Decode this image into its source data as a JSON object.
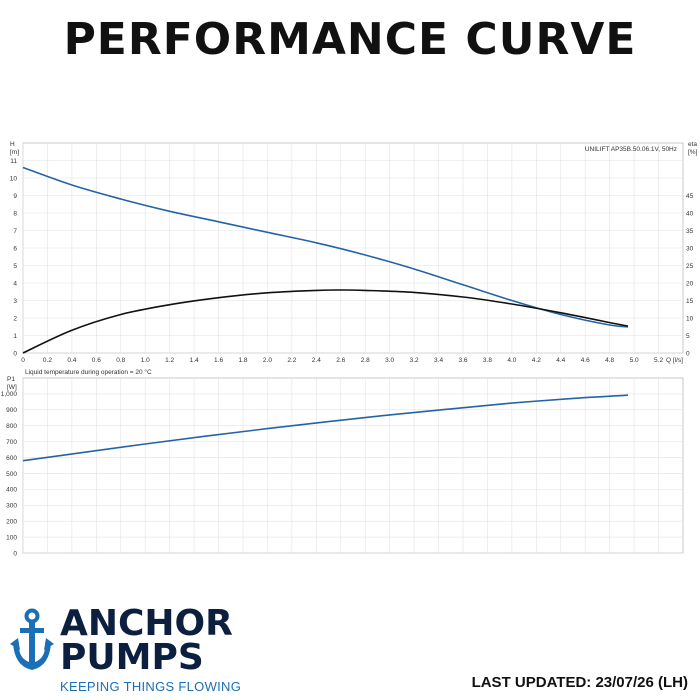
{
  "header": {
    "title": "PERFORMANCE CURVE"
  },
  "brand": {
    "line1": "ANCHOR",
    "line2": "PUMPS",
    "tagline": "KEEPING THINGS FLOWING",
    "icon": "anchor-icon",
    "colors": {
      "navy": "#0c1f3f",
      "blue": "#1b6fb5"
    }
  },
  "footer": {
    "last_updated": "LAST UPDATED: 23/07/26 (LH)"
  },
  "chart_data": [
    {
      "type": "line",
      "legend_text": "UNILIFT AP35B.50.06.1V, 50Hz",
      "legend_placement": "top-right",
      "ylabel": "H\n[m]",
      "y2label": "eta\n[%]",
      "xlabel": "Q [l/s]",
      "xlim": [
        0,
        5.4
      ],
      "ylim": [
        0,
        12
      ],
      "y2lim": [
        0,
        60
      ],
      "x_ticks": [
        0,
        0.2,
        0.4,
        0.6,
        0.8,
        1.0,
        1.2,
        1.4,
        1.6,
        1.8,
        2.0,
        2.2,
        2.4,
        2.6,
        2.8,
        3.0,
        3.2,
        3.4,
        3.6,
        3.8,
        4.0,
        4.2,
        4.4,
        4.6,
        4.8,
        5.0,
        5.2
      ],
      "y_ticks": [
        0,
        1,
        2,
        3,
        4,
        5,
        6,
        7,
        8,
        9,
        10,
        11
      ],
      "y2_ticks": [
        0,
        5,
        10,
        15,
        20,
        25,
        30,
        35,
        40,
        45
      ],
      "grid": true,
      "series": [
        {
          "axis": "left",
          "color": "#2563a8",
          "x": [
            0,
            0.4,
            0.8,
            1.2,
            1.6,
            2.0,
            2.4,
            2.8,
            3.2,
            3.6,
            4.0,
            4.4,
            4.8,
            4.95
          ],
          "y": [
            10.6,
            9.6,
            8.8,
            8.1,
            7.5,
            6.9,
            6.3,
            5.6,
            4.8,
            3.9,
            3.0,
            2.2,
            1.6,
            1.5
          ]
        },
        {
          "axis": "right",
          "color": "#111111",
          "x": [
            0,
            0.4,
            0.8,
            1.2,
            1.6,
            2.0,
            2.4,
            2.6,
            2.8,
            3.2,
            3.6,
            4.0,
            4.4,
            4.8,
            4.95
          ],
          "y": [
            0,
            6.5,
            11.0,
            13.8,
            15.8,
            17.2,
            17.9,
            18.0,
            17.9,
            17.3,
            16.0,
            14.0,
            11.5,
            8.7,
            7.7
          ]
        }
      ]
    },
    {
      "type": "line",
      "annotation": "Liquid temperature during operation = 20 °C",
      "ylabel": "P1\n[W]",
      "xlim": [
        0,
        5.4
      ],
      "ylim": [
        0,
        1100
      ],
      "y_ticks": [
        "0",
        "100",
        "200",
        "300",
        "400",
        "500",
        "600",
        "700",
        "800",
        "900",
        "1,000"
      ],
      "y_values": [
        0,
        100,
        200,
        300,
        400,
        500,
        600,
        700,
        800,
        900,
        1000
      ],
      "grid": true,
      "series": [
        {
          "color": "#2563a8",
          "x": [
            0,
            0.5,
            1.0,
            1.5,
            2.0,
            2.5,
            3.0,
            3.5,
            4.0,
            4.5,
            4.95
          ],
          "y": [
            580,
            633,
            685,
            735,
            782,
            826,
            868,
            906,
            942,
            972,
            992
          ]
        }
      ]
    }
  ]
}
